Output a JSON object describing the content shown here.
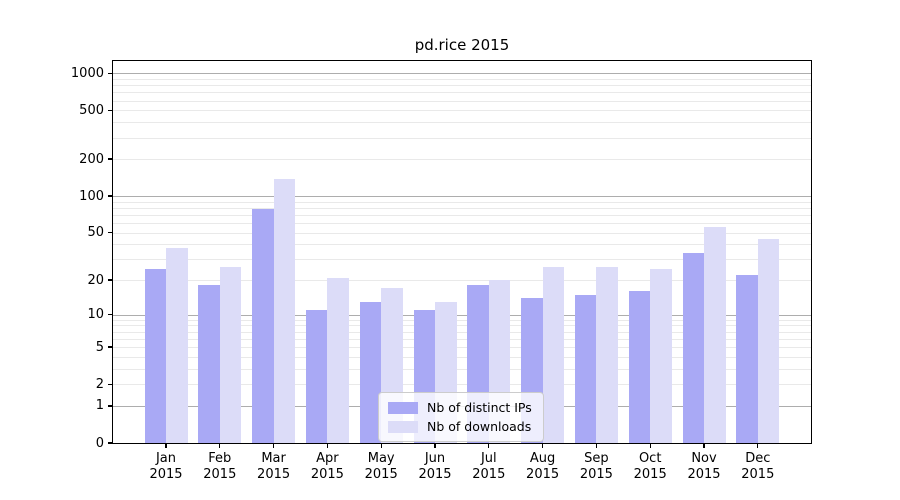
{
  "title": "pd.rice 2015",
  "legend": {
    "items": [
      {
        "label": "Nb of distinct IPs",
        "color": "#a9a9f5"
      },
      {
        "label": "Nb of downloads",
        "color": "#dcdcf8"
      }
    ]
  },
  "chart_data": {
    "type": "bar",
    "title": "pd.rice 2015",
    "categories": [
      "Jan 2015",
      "Feb 2015",
      "Mar 2015",
      "Apr 2015",
      "May 2015",
      "Jun 2015",
      "Jul 2015",
      "Aug 2015",
      "Sep 2015",
      "Oct 2015",
      "Nov 2015",
      "Dec 2015"
    ],
    "series": [
      {
        "name": "Nb of distinct IPs",
        "color": "#a9a9f5",
        "values": [
          25,
          18,
          78,
          11,
          13,
          11,
          18,
          14,
          15,
          16,
          34,
          22
        ]
      },
      {
        "name": "Nb of downloads",
        "color": "#dcdcf8",
        "values": [
          37,
          26,
          137,
          21,
          17,
          13,
          20,
          26,
          26,
          25,
          56,
          44
        ]
      }
    ],
    "y_scale": "log10(1+v)",
    "y_ticks": [
      0,
      1,
      2,
      5,
      10,
      20,
      50,
      100,
      200,
      500,
      1000
    ],
    "y_major_gridlines": [
      1,
      10,
      100,
      1000
    ],
    "y_minor_gridlines": [
      2,
      3,
      4,
      5,
      6,
      7,
      8,
      9,
      20,
      30,
      40,
      50,
      60,
      70,
      80,
      90,
      200,
      300,
      400,
      500,
      600,
      700,
      800,
      900
    ],
    "ylim": [
      0,
      1200
    ],
    "grid": true,
    "legend_position": "lower center",
    "xlabel": "",
    "ylabel": ""
  }
}
